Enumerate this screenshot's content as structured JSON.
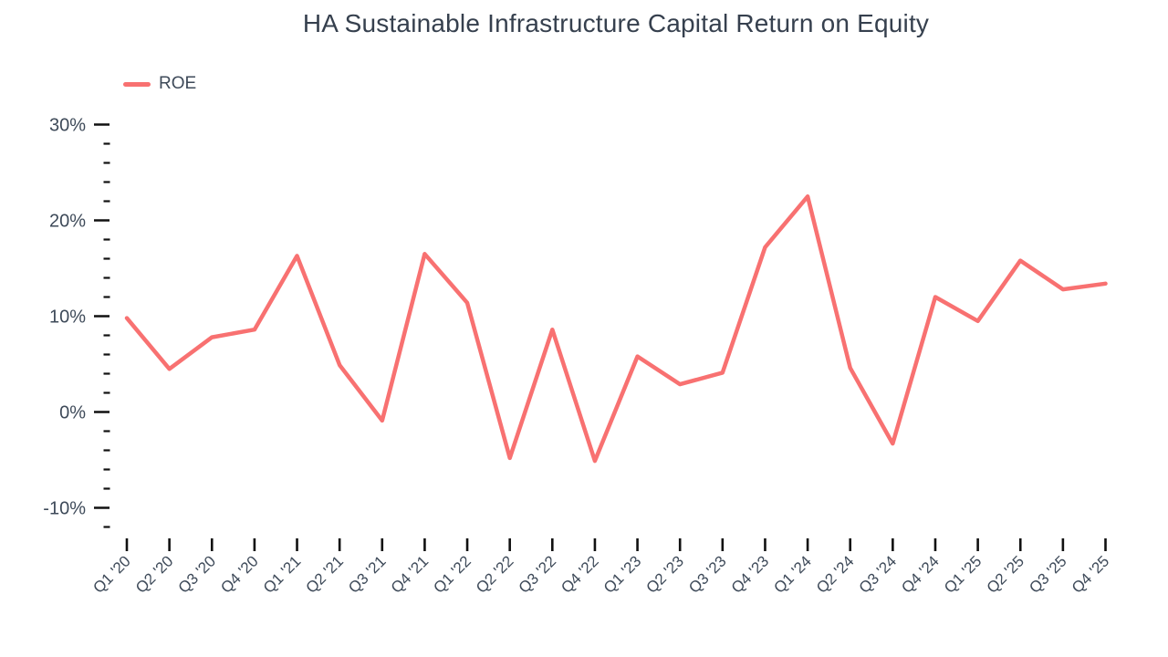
{
  "title": "HA Sustainable Infrastructure Capital Return on Equity",
  "legend": [
    {
      "label": "ROE",
      "color": "#F87171"
    }
  ],
  "chart_data": {
    "type": "line",
    "title": "HA Sustainable Infrastructure Capital Return on Equity",
    "categories": [
      "Q1 '20",
      "Q2 '20",
      "Q3 '20",
      "Q4 '20",
      "Q1 '21",
      "Q2 '21",
      "Q3 '21",
      "Q4 '21",
      "Q1 '22",
      "Q2 '22",
      "Q3 '22",
      "Q4 '22",
      "Q1 '23",
      "Q2 '23",
      "Q3 '23",
      "Q4 '23",
      "Q1 '24",
      "Q2 '24",
      "Q3 '24",
      "Q4 '24",
      "Q1 '25",
      "Q2 '25",
      "Q3 '25",
      "Q4 '25"
    ],
    "series": [
      {
        "name": "ROE",
        "color": "#F87171",
        "values": [
          9.8,
          4.5,
          7.8,
          8.6,
          16.3,
          4.9,
          -0.9,
          16.5,
          11.4,
          -4.8,
          8.6,
          -5.1,
          5.8,
          2.9,
          4.1,
          17.2,
          22.5,
          4.6,
          -3.3,
          12.0,
          9.5,
          15.8,
          12.8,
          13.4
        ]
      }
    ],
    "xlabel": "",
    "ylabel": "",
    "ylim": [
      -12,
      30
    ],
    "y_ticks_major": [
      30,
      20,
      10,
      0,
      -10
    ],
    "y_minor_step": 2,
    "y_tick_suffix": "%",
    "grid": false,
    "legend_position": "top-left"
  },
  "colors": {
    "line": "#F87171",
    "title_text": "#36404E",
    "axis_text": "#3E4A59",
    "tick_mark": "#111111",
    "background": "#FFFFFF"
  }
}
